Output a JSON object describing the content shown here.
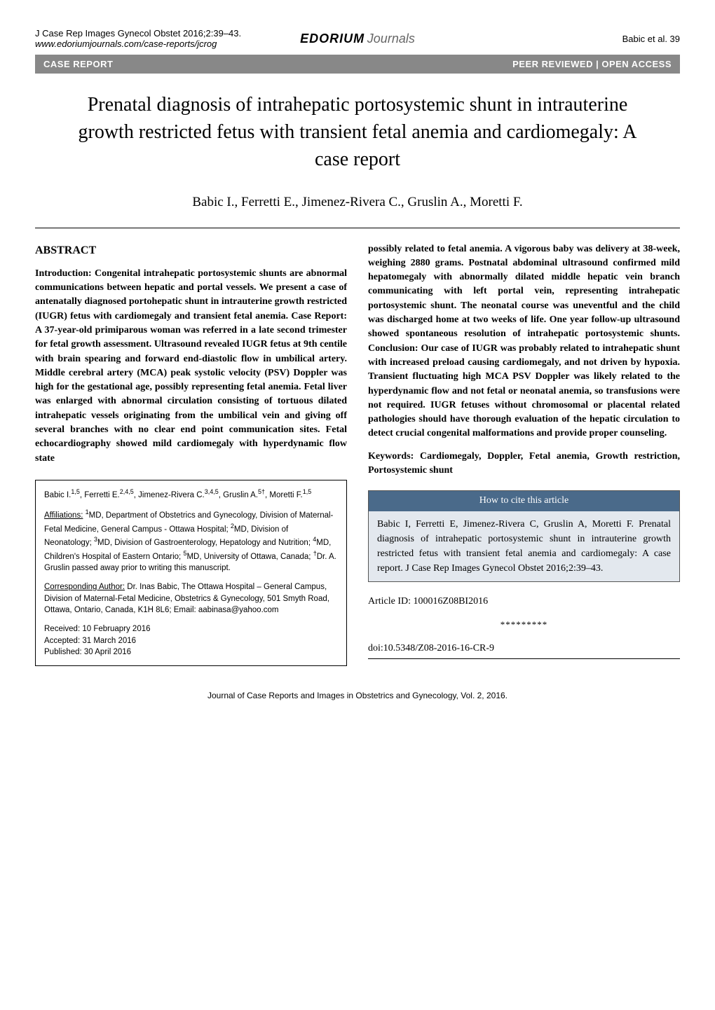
{
  "header": {
    "citation_line1": "J Case Rep Images Gynecol Obstet 2016;2:39–43.",
    "citation_line2": "www.edoriumjournals.com/case-reports/jcrog",
    "logo_bold": "EDORIUM",
    "logo_light": "Journals",
    "page_ref": "Babic et al.   39"
  },
  "type_bar": {
    "left": "CASE REPORT",
    "right": "PEER REVIEWED | OPEN ACCESS"
  },
  "title": "Prenatal diagnosis of intrahepatic portosystemic shunt in intrauterine growth restricted fetus with transient fetal anemia and cardiomegaly: A case report",
  "authors": "Babic I., Ferretti E., Jimenez-Rivera C., Gruslin A., Moretti F.",
  "abstract": {
    "heading": "ABSTRACT",
    "text_col1": "Introduction: Congenital intrahepatic portosystemic shunts are abnormal communications between hepatic and portal vessels. We present a case of antenatally diagnosed portohepatic shunt in intrauterine growth restricted (IUGR) fetus with cardiomegaly and transient fetal anemia. Case Report: A 37-year-old primiparous woman was referred in a late second trimester for fetal growth assessment. Ultrasound revealed IUGR fetus at 9th centile with brain spearing and forward end-diastolic flow in umbilical artery. Middle cerebral artery (MCA) peak systolic velocity (PSV) Doppler was high for the gestational age, possibly representing fetal anemia. Fetal liver was enlarged with abnormal circulation consisting of tortuous dilated intrahepatic vessels originating from the umbilical vein and giving off several branches with no clear end point communication sites. Fetal echocardiography showed mild cardiomegaly with hyperdynamic flow state",
    "text_col2": "possibly related to fetal anemia. A vigorous baby was delivery at 38-week, weighing 2880 grams. Postnatal abdominal ultrasound confirmed mild hepatomegaly with abnormally dilated middle hepatic vein branch communicating with left portal vein, representing intrahepatic portosystemic shunt. The neonatal course was uneventful and the child was discharged home at two weeks of life. One year follow-up ultrasound showed spontaneous resolution of intrahepatic portosystemic shunts. Conclusion: Our case of IUGR was probably related to intrahepatic shunt with increased preload causing cardiomegaly, and not driven by hypoxia. Transient fluctuating high MCA PSV Doppler was likely related to the hyperdynamic flow and not fetal or neonatal anemia, so transfusions were not required. IUGR fetuses without chromosomal or placental related pathologies should have thorough evaluation of the hepatic circulation to detect crucial congenital malformations and provide proper counseling.",
    "keywords_label": "Keywords:",
    "keywords": "Cardiomegaly, Doppler, Fetal anemia, Growth restriction, Portosystemic shunt"
  },
  "info_box": {
    "author_line": "Babic I.<sup>1,5</sup>, Ferretti E.<sup>2,4,5</sup>, Jimenez-Rivera C.<sup>3,4,5</sup>, Gruslin A.<sup>5†</sup>, Moretti F.<sup>1,5</sup>",
    "affiliations_label": "Affiliations:",
    "affiliations_text": " <sup>1</sup>MD, Department of Obstetrics and Gynecology, Division of Maternal-Fetal Medicine, General Campus - Ottawa Hospital; <sup>2</sup>MD, Division of Neonatology; <sup>3</sup>MD, Division of Gastroenterology, Hepatology and Nutrition; <sup>4</sup>MD, Children's Hospital of Eastern Ontario; <sup>5</sup>MD, University of Ottawa, Canada; <sup>†</sup>Dr. A. Gruslin passed away prior to writing this manuscript.",
    "corresponding_label": "Corresponding Author:",
    "corresponding_text": " Dr. Inas Babic, The Ottawa Hospital – General Campus, Division of Maternal-Fetal Medicine, Obstetrics & Gynecology, 501 Smyth Road, Ottawa, Ontario, Canada, K1H 8L6; Email: aabinasa@yahoo.com",
    "received": "Received: 10 Februapry 2016",
    "accepted": "Accepted: 31 March 2016",
    "published": "Published: 30 April 2016"
  },
  "cite_box": {
    "header": "How to cite this article",
    "body": "Babic I, Ferretti E, Jimenez-Rivera C, Gruslin A, Moretti F. Prenatal diagnosis of intrahepatic portosystemic shunt in intrauterine growth restricted fetus with transient fetal anemia and cardiomegaly: A case report. J Case Rep Images Gynecol Obstet 2016;2:39–43."
  },
  "article_id_label": "Article ID: ",
  "article_id": "100016Z08BI2016",
  "stars": "*********",
  "doi_label": "doi:",
  "doi": "10.5348/Z08-2016-16-CR-9",
  "footer": "Journal of Case Reports and Images in Obstetrics and Gynecology, Vol. 2, 2016.",
  "colors": {
    "type_bar_bg": "#888888",
    "cite_header_bg": "#4a6a8a",
    "cite_body_bg": "#e3e8ee"
  }
}
